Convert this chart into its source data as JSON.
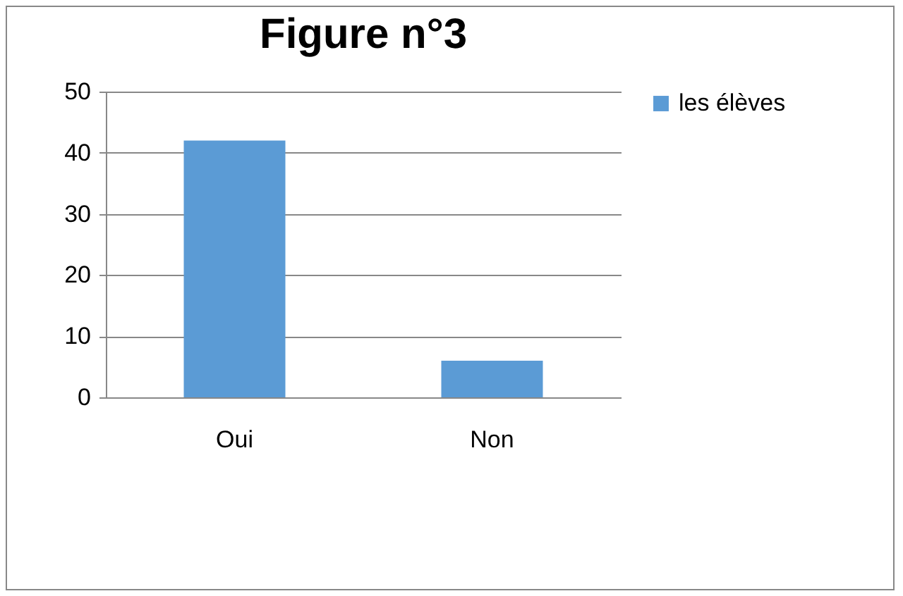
{
  "chart_data": {
    "type": "bar",
    "title": "Figure n°3",
    "categories": [
      "Oui",
      "Non"
    ],
    "series": [
      {
        "name": "les élèves",
        "color": "#5b9bd5",
        "values": [
          42,
          6
        ]
      }
    ],
    "ylim": [
      0,
      50
    ],
    "yticks": [
      0,
      10,
      20,
      30,
      40,
      50
    ],
    "grid": "y",
    "legend": "right"
  }
}
